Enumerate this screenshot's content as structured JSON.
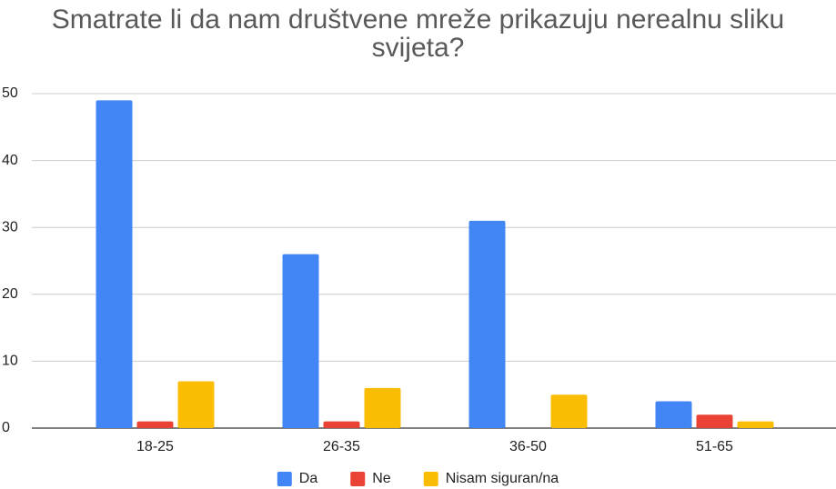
{
  "chart_data": {
    "type": "bar",
    "title": "Smatrate li da nam društvene mreže prikazuju nerealnu sliku svijeta?",
    "categories": [
      "18-25",
      "26-35",
      "36-50",
      "51-65"
    ],
    "series": [
      {
        "name": "Da",
        "color": "#4285f4",
        "values": [
          49,
          26,
          31,
          4
        ]
      },
      {
        "name": "Ne",
        "color": "#ea4335",
        "values": [
          1,
          1,
          0,
          2
        ]
      },
      {
        "name": "Nisam siguran/na",
        "color": "#fbbc04",
        "values": [
          7,
          6,
          5,
          1
        ]
      }
    ],
    "ylim": [
      0,
      50
    ],
    "yticks": [
      0,
      10,
      20,
      30,
      40,
      50
    ],
    "grid": true,
    "legend": "bottom"
  }
}
